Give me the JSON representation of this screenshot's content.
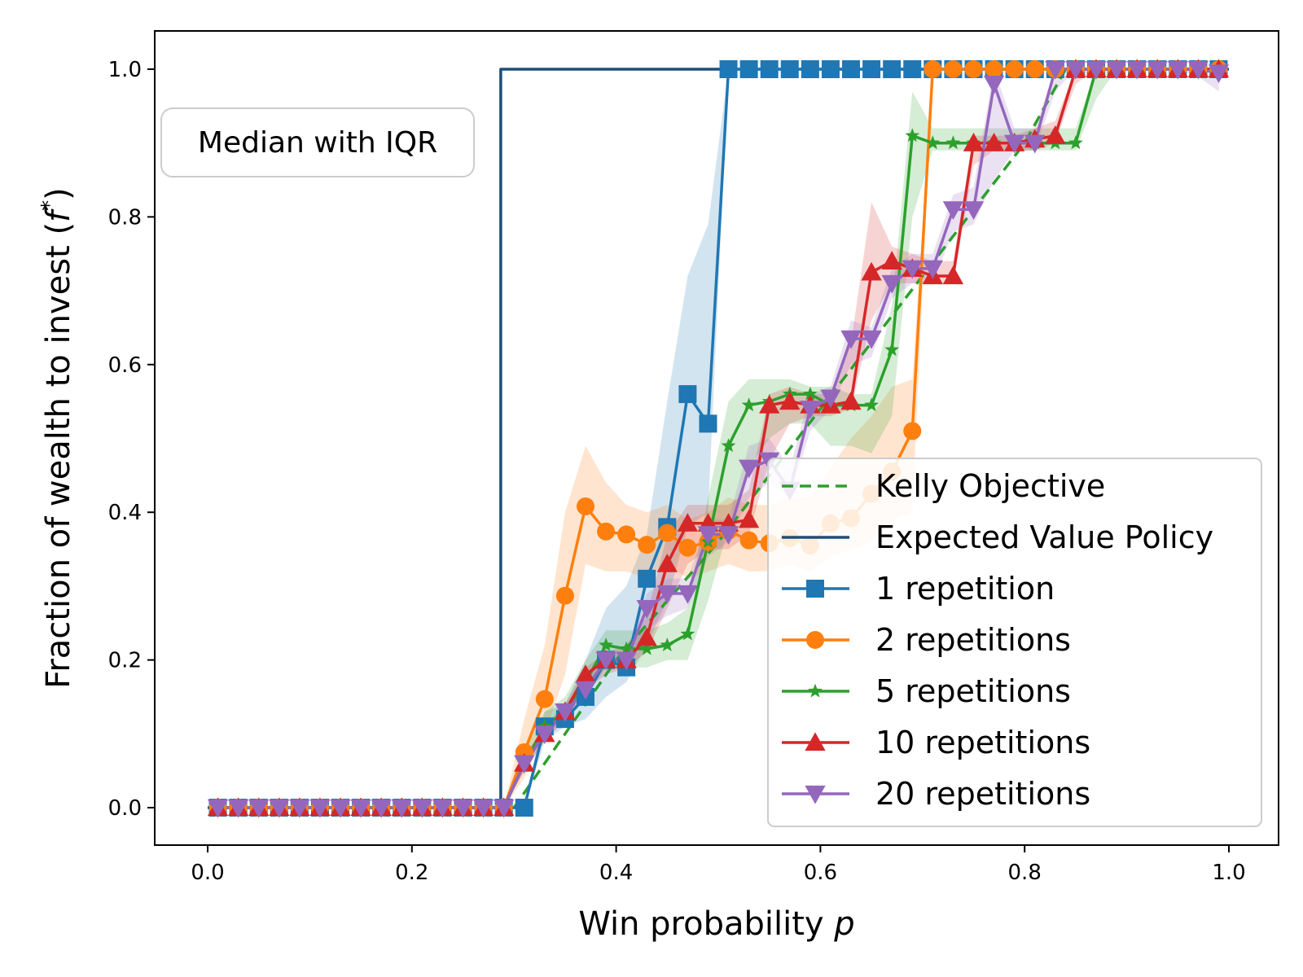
{
  "chart_data": {
    "type": "line",
    "title": "",
    "xlabel": "Win probability p",
    "xlabel_text": "Win probability ",
    "xlabel_var": "p",
    "ylabel": "Fraction of wealth to invest (f*)",
    "ylabel_text": "Fraction of wealth to invest (",
    "ylabel_var": "f",
    "ylabel_sup": "*",
    "ylabel_close": ")",
    "xlim": [
      -0.05,
      1.05
    ],
    "ylim": [
      -0.05,
      1.05
    ],
    "xticks": [
      0.0,
      0.2,
      0.4,
      0.6,
      0.8,
      1.0
    ],
    "xtick_labels": [
      "0.0",
      "0.2",
      "0.4",
      "0.6",
      "0.8",
      "1.0"
    ],
    "yticks": [
      0.0,
      0.2,
      0.4,
      0.6,
      0.8,
      1.0
    ],
    "ytick_labels": [
      "0.0",
      "0.2",
      "0.4",
      "0.6",
      "0.8",
      "1.0"
    ],
    "annotation": "Median with IQR",
    "legend_position": "lower-right",
    "x": [
      0.01,
      0.03,
      0.05,
      0.07,
      0.09,
      0.11,
      0.13,
      0.15,
      0.17,
      0.19,
      0.21,
      0.23,
      0.25,
      0.27,
      0.29,
      0.31,
      0.33,
      0.35,
      0.37,
      0.39,
      0.41,
      0.43,
      0.45,
      0.47,
      0.49,
      0.51,
      0.53,
      0.55,
      0.57,
      0.59,
      0.61,
      0.63,
      0.65,
      0.67,
      0.69,
      0.71,
      0.73,
      0.75,
      0.77,
      0.79,
      0.81,
      0.83,
      0.85,
      0.87,
      0.89,
      0.91,
      0.93,
      0.95,
      0.97,
      0.99
    ],
    "series": [
      {
        "name": "Kelly Objective",
        "color": "#2ca02c",
        "style": "dashed",
        "marker": "none",
        "x": [
          0.0,
          0.3,
          0.4,
          0.5,
          0.6,
          0.7,
          0.8,
          0.84,
          1.0
        ],
        "values": [
          0.0,
          0.0,
          0.2,
          0.36,
          0.54,
          0.72,
          0.9,
          1.0,
          1.0
        ]
      },
      {
        "name": "Expected Value Policy",
        "color": "#1f4e79",
        "style": "solid",
        "marker": "none",
        "x": [
          0.0,
          0.287,
          0.287,
          1.0
        ],
        "values": [
          0.0,
          0.0,
          1.0,
          1.0
        ]
      },
      {
        "name": "1 repetition",
        "color": "#1f77b4",
        "marker": "square",
        "values": [
          0,
          0,
          0,
          0,
          0,
          0,
          0,
          0,
          0,
          0,
          0,
          0,
          0,
          0,
          0,
          0,
          0.11,
          0.12,
          0.15,
          0.2,
          0.19,
          0.31,
          0.38,
          0.56,
          0.52,
          1,
          1,
          1,
          1,
          1,
          1,
          1,
          1,
          1,
          1,
          1,
          1,
          1,
          1,
          1,
          1,
          1,
          1,
          1,
          1,
          1,
          1,
          1,
          1,
          1
        ],
        "iqr_low": [
          0,
          0,
          0,
          0,
          0,
          0,
          0,
          0,
          0,
          0,
          0,
          0,
          0,
          0,
          0,
          0,
          0.09,
          0.11,
          0.12,
          0.15,
          0.17,
          0.22,
          0.28,
          0.38,
          0.4,
          1,
          1,
          1,
          1,
          1,
          1,
          1,
          1,
          1,
          1,
          1,
          1,
          1,
          1,
          1,
          1,
          1,
          1,
          1,
          1,
          1,
          1,
          1,
          1,
          1
        ],
        "iqr_high": [
          0,
          0,
          0,
          0,
          0,
          0,
          0,
          0,
          0,
          0,
          0,
          0,
          0,
          0,
          0,
          0,
          0.13,
          0.14,
          0.2,
          0.27,
          0.3,
          0.37,
          0.55,
          0.72,
          0.79,
          1,
          1,
          1,
          1,
          1,
          1,
          1,
          1,
          1,
          1,
          1,
          1,
          1,
          1,
          1,
          1,
          1,
          1,
          1,
          1,
          1,
          1,
          1,
          1,
          1
        ]
      },
      {
        "name": "2 repetitions",
        "color": "#ff7f0e",
        "marker": "circle",
        "values": [
          0,
          0,
          0,
          0,
          0,
          0,
          0,
          0,
          0,
          0,
          0,
          0,
          0,
          0,
          0,
          0.075,
          0.147,
          0.287,
          0.408,
          0.374,
          0.37,
          0.356,
          0.372,
          0.352,
          0.36,
          0.375,
          0.362,
          0.358,
          0.365,
          0.355,
          0.385,
          0.392,
          0.425,
          0.455,
          0.51,
          1,
          1,
          1,
          1,
          1,
          1,
          1,
          1,
          1,
          1,
          1,
          1,
          1,
          1,
          1
        ],
        "iqr_low": [
          0,
          0,
          0,
          0,
          0,
          0,
          0,
          0,
          0,
          0,
          0,
          0,
          0,
          0,
          0,
          0.04,
          0.1,
          0.18,
          0.33,
          0.32,
          0.32,
          0.31,
          0.33,
          0.31,
          0.32,
          0.33,
          0.32,
          0.32,
          0.33,
          0.32,
          0.34,
          0.35,
          0.36,
          0.39,
          0.4,
          1,
          1,
          1,
          1,
          1,
          1,
          1,
          1,
          1,
          1,
          1,
          1,
          1,
          1,
          1
        ],
        "iqr_high": [
          0,
          0,
          0,
          0,
          0,
          0,
          0,
          0,
          0,
          0,
          0,
          0,
          0,
          0,
          0,
          0.12,
          0.22,
          0.4,
          0.49,
          0.44,
          0.41,
          0.4,
          0.41,
          0.39,
          0.4,
          0.42,
          0.41,
          0.41,
          0.42,
          0.42,
          0.46,
          0.5,
          0.53,
          0.57,
          0.58,
          1,
          1,
          1,
          1,
          1,
          1,
          1,
          1,
          1,
          1,
          1,
          1,
          1,
          1,
          1
        ]
      },
      {
        "name": "5 repetitions",
        "color": "#2ca02c",
        "marker": "star",
        "values": [
          0,
          0,
          0,
          0,
          0,
          0,
          0,
          0,
          0,
          0,
          0,
          0,
          0,
          0,
          0,
          0.06,
          0.11,
          0.13,
          0.17,
          0.22,
          0.215,
          0.215,
          0.22,
          0.235,
          0.36,
          0.49,
          0.545,
          0.55,
          0.56,
          0.56,
          0.545,
          0.545,
          0.545,
          0.62,
          0.91,
          0.9,
          0.9,
          0.9,
          0.9,
          0.9,
          0.9,
          0.9,
          0.9,
          1,
          1,
          1,
          1,
          1,
          1,
          1
        ],
        "iqr_low": [
          0,
          0,
          0,
          0,
          0,
          0,
          0,
          0,
          0,
          0,
          0,
          0,
          0,
          0,
          0,
          0.05,
          0.1,
          0.12,
          0.15,
          0.19,
          0.19,
          0.19,
          0.2,
          0.2,
          0.28,
          0.38,
          0.46,
          0.5,
          0.52,
          0.52,
          0.49,
          0.49,
          0.48,
          0.53,
          0.8,
          0.89,
          0.89,
          0.89,
          0.89,
          0.89,
          0.89,
          0.89,
          0.89,
          0.96,
          1,
          1,
          1,
          1,
          1,
          1
        ],
        "iqr_high": [
          0,
          0,
          0,
          0,
          0,
          0,
          0,
          0,
          0,
          0,
          0,
          0,
          0,
          0,
          0,
          0.08,
          0.13,
          0.15,
          0.2,
          0.24,
          0.24,
          0.24,
          0.25,
          0.27,
          0.42,
          0.55,
          0.58,
          0.58,
          0.58,
          0.57,
          0.57,
          0.56,
          0.56,
          0.68,
          0.97,
          0.92,
          0.92,
          0.92,
          0.92,
          0.92,
          0.92,
          0.92,
          0.92,
          1,
          1,
          1,
          1,
          1,
          1,
          1
        ]
      },
      {
        "name": "10 repetitions",
        "color": "#d62728",
        "marker": "triangle-up",
        "values": [
          0,
          0,
          0,
          0,
          0,
          0,
          0,
          0,
          0,
          0,
          0,
          0,
          0,
          0,
          0,
          0.06,
          0.1,
          0.13,
          0.18,
          0.2,
          0.2,
          0.23,
          0.33,
          0.385,
          0.385,
          0.385,
          0.39,
          0.545,
          0.55,
          0.545,
          0.545,
          0.55,
          0.725,
          0.74,
          0.73,
          0.72,
          0.72,
          0.9,
          0.9,
          0.9,
          0.905,
          0.91,
          1,
          1,
          1,
          1,
          1,
          1,
          1,
          1
        ],
        "iqr_low": [
          0,
          0,
          0,
          0,
          0,
          0,
          0,
          0,
          0,
          0,
          0,
          0,
          0,
          0,
          0,
          0.05,
          0.09,
          0.12,
          0.16,
          0.18,
          0.19,
          0.21,
          0.27,
          0.33,
          0.35,
          0.35,
          0.37,
          0.47,
          0.52,
          0.53,
          0.53,
          0.54,
          0.66,
          0.71,
          0.71,
          0.71,
          0.71,
          0.87,
          0.89,
          0.89,
          0.89,
          0.9,
          0.98,
          1,
          1,
          1,
          1,
          1,
          1,
          1
        ],
        "iqr_high": [
          0,
          0,
          0,
          0,
          0,
          0,
          0,
          0,
          0,
          0,
          0,
          0,
          0,
          0,
          0,
          0.07,
          0.11,
          0.14,
          0.19,
          0.21,
          0.22,
          0.26,
          0.37,
          0.41,
          0.41,
          0.41,
          0.43,
          0.56,
          0.57,
          0.56,
          0.56,
          0.63,
          0.82,
          0.76,
          0.75,
          0.74,
          0.74,
          0.91,
          0.91,
          0.91,
          0.92,
          0.93,
          1,
          1,
          1,
          1,
          1,
          1,
          1,
          1
        ]
      },
      {
        "name": "20 repetitions",
        "color": "#9467bd",
        "marker": "triangle-down",
        "values": [
          0,
          0,
          0,
          0,
          0,
          0,
          0,
          0,
          0,
          0,
          0,
          0,
          0,
          0,
          0,
          0.06,
          0.1,
          0.13,
          0.16,
          0.2,
          0.2,
          0.27,
          0.29,
          0.29,
          0.37,
          0.37,
          0.46,
          0.47,
          0.43,
          0.54,
          0.555,
          0.635,
          0.635,
          0.71,
          0.73,
          0.73,
          0.81,
          0.81,
          0.98,
          0.9,
          0.9,
          1,
          1,
          1,
          1,
          1,
          1,
          1,
          1,
          0.995
        ],
        "iqr_low": [
          0,
          0,
          0,
          0,
          0,
          0,
          0,
          0,
          0,
          0,
          0,
          0,
          0,
          0,
          0,
          0.05,
          0.09,
          0.12,
          0.15,
          0.19,
          0.19,
          0.24,
          0.26,
          0.27,
          0.34,
          0.36,
          0.42,
          0.44,
          0.42,
          0.51,
          0.54,
          0.6,
          0.61,
          0.69,
          0.71,
          0.71,
          0.78,
          0.79,
          0.85,
          0.89,
          0.89,
          0.97,
          1,
          1,
          1,
          1,
          1,
          1,
          0.99,
          0.97
        ],
        "iqr_high": [
          0,
          0,
          0,
          0,
          0,
          0,
          0,
          0,
          0,
          0,
          0,
          0,
          0,
          0,
          0,
          0.07,
          0.11,
          0.14,
          0.17,
          0.21,
          0.21,
          0.29,
          0.31,
          0.31,
          0.39,
          0.39,
          0.49,
          0.5,
          0.46,
          0.56,
          0.57,
          0.66,
          0.65,
          0.73,
          0.75,
          0.75,
          0.83,
          0.84,
          1,
          0.92,
          0.92,
          1,
          1,
          1,
          1,
          1,
          1,
          1,
          1,
          1
        ]
      }
    ]
  }
}
